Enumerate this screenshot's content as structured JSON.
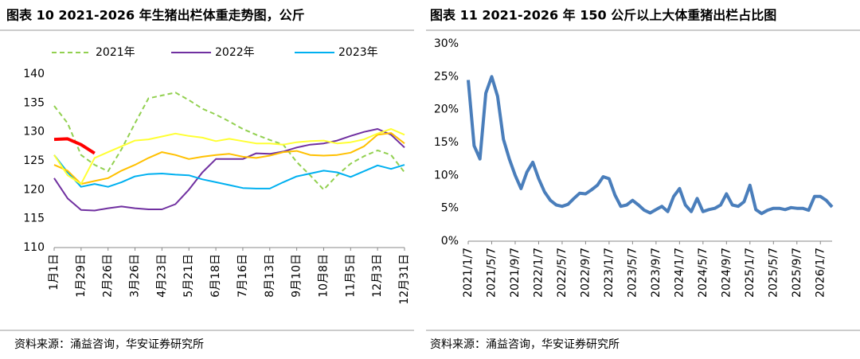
{
  "chart_data": [
    {
      "type": "line",
      "title": "图表 10 2021-2026 年生猪出栏体重走势图，公斤",
      "source": "资料来源：涌益咨询，华安证券研究所",
      "categories": [
        "1月1日",
        null,
        "1月29日",
        null,
        "2月26日",
        null,
        "3月26日",
        null,
        "4月23日",
        null,
        "5月21日",
        null,
        "6月18日",
        null,
        "7月16日",
        null,
        "8月13日",
        null,
        "9月10日",
        null,
        "10月8日",
        null,
        "11月5日",
        null,
        "12月3日",
        null,
        "12月31日"
      ],
      "ylim": [
        110,
        140
      ],
      "yticks": [
        110,
        115,
        120,
        125,
        130,
        135,
        140
      ],
      "grid": false,
      "series": [
        {
          "name": "2021年",
          "color": "#92d050",
          "dashed": true,
          "values": [
            134.5,
            131.5,
            126,
            124.3,
            123.2,
            127,
            131.5,
            135.8,
            136.3,
            136.8,
            135.5,
            134,
            133,
            131.8,
            130.5,
            129.5,
            128.6,
            127.8,
            124.8,
            122.5,
            120,
            122.5,
            124.5,
            125.8,
            126.8,
            126,
            123
          ]
        },
        {
          "name": "2022年",
          "color": "#7030a0",
          "values": [
            122,
            118.5,
            116.5,
            116.4,
            116.8,
            117.1,
            116.8,
            116.6,
            116.6,
            117.5,
            120,
            123,
            125.3,
            125.3,
            125.3,
            126.3,
            126.2,
            126.6,
            127.3,
            127.8,
            128,
            128.5,
            129.3,
            130,
            130.5,
            129.5,
            127.3
          ]
        },
        {
          "name": "2023年",
          "color": "#00b0f0",
          "values": [
            126,
            123,
            120.5,
            121,
            120.5,
            121.3,
            122.3,
            122.7,
            122.8,
            122.6,
            122.5,
            121.8,
            121.3,
            120.8,
            120.3,
            120.2,
            120.2,
            121.3,
            122.3,
            122.8,
            123.3,
            123,
            122.2,
            123.2,
            124.2,
            123.6,
            124.3
          ]
        },
        {
          "color": "#ffc000",
          "values": [
            124.3,
            123.3,
            121,
            121.5,
            122,
            123.3,
            124.3,
            125.5,
            126.5,
            126,
            125.3,
            125.7,
            126,
            126.2,
            125.7,
            125.5,
            125.9,
            126.5,
            126.7,
            126,
            125.9,
            126,
            126.4,
            127.5,
            129.5,
            129.8,
            128
          ]
        },
        {
          "color": "#ffff33",
          "values": [
            126,
            122.5,
            121,
            125.5,
            126.5,
            127.5,
            128.5,
            128.7,
            129.2,
            129.7,
            129.3,
            129,
            128.4,
            128.8,
            128.4,
            128,
            128,
            127.8,
            128.2,
            128.4,
            128.5,
            128,
            128.2,
            128.7,
            129.7,
            130.5,
            129.5
          ]
        },
        {
          "color": "#ff0000",
          "thick": true,
          "values": [
            128.7,
            128.8,
            127.8,
            126.3,
            null,
            null,
            null,
            null,
            null,
            null,
            null,
            null,
            null,
            null,
            null,
            null,
            null,
            null,
            null,
            null,
            null,
            null,
            null,
            null,
            null,
            null,
            null
          ]
        }
      ]
    },
    {
      "type": "line",
      "title": "图表 11 2021-2026 年 150 公斤以上大体重猪出栏占比图",
      "source": "资料来源：涌益咨询，华安证券研究所",
      "categories": [
        "2021/1/7",
        null,
        null,
        null,
        "2021/5/7",
        null,
        null,
        null,
        "2021/9/7",
        null,
        null,
        null,
        "2022/1/7",
        null,
        null,
        null,
        "2022/5/7",
        null,
        null,
        null,
        "2022/9/7",
        null,
        null,
        null,
        "2023/1/7",
        null,
        null,
        null,
        "2023/5/7",
        null,
        null,
        null,
        "2023/9/7",
        null,
        null,
        null,
        "2024/1/7",
        null,
        null,
        null,
        "2024/5/7",
        null,
        null,
        null,
        "2024/9/7",
        null,
        null,
        null,
        "2025/1/7",
        null,
        null,
        null,
        "2025/5/7",
        null,
        null,
        null,
        "2025/9/7",
        null,
        null,
        null,
        "2026/1/7",
        null,
        null
      ],
      "ylim": [
        0,
        30
      ],
      "yticks": [
        {
          "value": 0,
          "label": "0%"
        },
        {
          "value": 5,
          "label": "5%"
        },
        {
          "value": 10,
          "label": "10%"
        },
        {
          "value": 15,
          "label": "15%"
        },
        {
          "value": 20,
          "label": "20%"
        },
        {
          "value": 25,
          "label": "25%"
        },
        {
          "value": 30,
          "label": "30%"
        }
      ],
      "grid": false,
      "series": [
        {
          "color": "#4a7ebb",
          "thick": true,
          "values": [
            24.5,
            14.5,
            12.5,
            22.5,
            25,
            22,
            15.5,
            12.5,
            10,
            8,
            10.5,
            12,
            9.5,
            7.5,
            6.2,
            5.5,
            5.3,
            5.6,
            6.5,
            7.3,
            7.2,
            7.8,
            8.5,
            9.8,
            9.5,
            7,
            5.3,
            5.5,
            6.2,
            5.5,
            4.7,
            4.3,
            4.8,
            5.3,
            4.5,
            6.8,
            8,
            5.5,
            4.5,
            6.5,
            4.5,
            4.8,
            5,
            5.5,
            7.2,
            5.5,
            5.3,
            6,
            8.5,
            4.8,
            4.2,
            4.7,
            5,
            5,
            4.8,
            5.1,
            5,
            5,
            4.7,
            6.8,
            6.8,
            6.2,
            5.2
          ]
        }
      ]
    }
  ]
}
